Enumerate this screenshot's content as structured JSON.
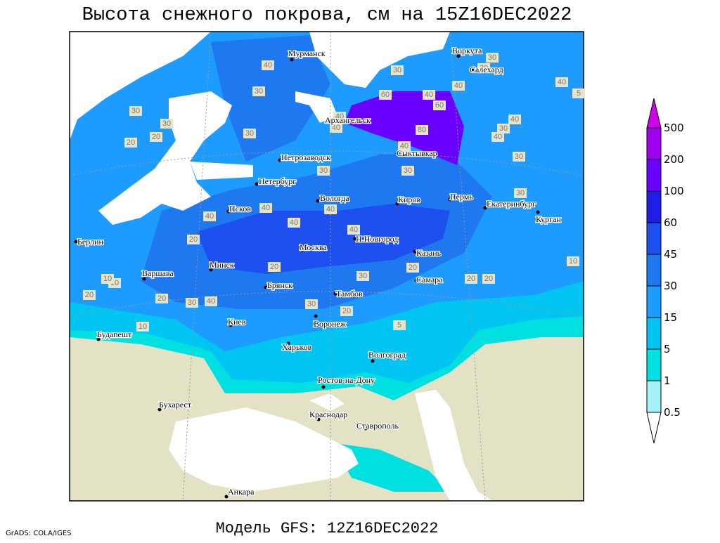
{
  "title": "Высота снежного покрова, см на 15Z16DEC2022",
  "footer": "Модель GFS: 12Z16DEC2022",
  "credit": "GrADS: COLA/IGES",
  "cities": [
    "Мурманск",
    "Воркута",
    "Салехард",
    "Архангельск",
    "Петрозаводск",
    "Сыктывкар",
    "Петербург",
    "Вологда",
    "Киров",
    "Пермь",
    "Екатеринбург",
    "Курган",
    "Псков",
    "Н.Новгород",
    "Берлин",
    "Москва",
    "Казань",
    "Минск",
    "Варшава",
    "Самара",
    "Брянск",
    "Тамбов",
    "Киев",
    "Воронеж",
    "Будапешт",
    "Харьков",
    "Волгоград",
    "Ростов-на-Дону",
    "Бухарест",
    "Краснодар",
    "Ставрополь",
    "Анкара"
  ],
  "contour_labels": [
    40,
    30,
    30,
    20,
    30,
    20,
    30,
    30,
    30,
    30,
    30,
    40,
    40,
    60,
    40,
    80,
    60,
    40,
    30,
    40,
    40,
    40,
    30,
    30,
    40,
    30,
    40,
    40,
    40,
    40,
    20,
    40,
    20,
    10,
    10,
    20,
    20,
    30,
    40,
    20,
    30,
    20,
    20,
    30,
    20,
    10,
    10,
    5,
    5
  ],
  "legend": {
    "levels": [
      0.5,
      1,
      5,
      15,
      30,
      45,
      60,
      100,
      200,
      500
    ],
    "colors": [
      "#ffffff",
      "#a6f2f8",
      "#00e0e0",
      "#00c4f2",
      "#1e9bff",
      "#1e78f0",
      "#1e50f0",
      "#1e1ee6",
      "#6a00ff",
      "#a000f0",
      "#d000e8"
    ]
  }
}
